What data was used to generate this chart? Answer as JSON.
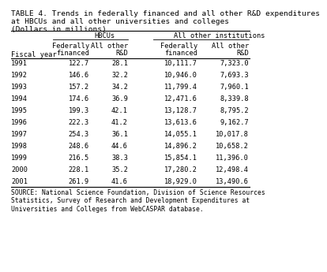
{
  "title_line1": "TABLE 4. Trends in federally financed and all other R&D expenditures",
  "title_line2": "at HBCUs and all other universities and colleges",
  "subtitle": "(Dollars in millions)",
  "col_group1": "HBCUs",
  "col_group2": "All other institutions",
  "col_sub1a": "Federally",
  "col_sub1b": "financed",
  "col_sub2a": "All other",
  "col_sub2b": "R&D",
  "col_sub3a": "Federally",
  "col_sub3b": "financed",
  "col_sub4a": "All other",
  "col_sub4b": "R&D",
  "row_header": "Fiscal year",
  "years": [
    "1991",
    "1992",
    "1993",
    "1994",
    "1995",
    "1996",
    "1997",
    "1998",
    "1999",
    "2000",
    "2001"
  ],
  "hbcu_fed": [
    "122.7",
    "146.6",
    "157.2",
    "174.6",
    "199.3",
    "222.3",
    "254.3",
    "248.6",
    "216.5",
    "228.1",
    "261.9"
  ],
  "hbcu_other": [
    "28.1",
    "32.2",
    "34.2",
    "36.9",
    "42.1",
    "41.2",
    "36.1",
    "44.6",
    "38.3",
    "35.2",
    "41.6"
  ],
  "other_fed": [
    "10,111.7",
    "10,946.0",
    "11,799.4",
    "12,471.6",
    "13,128.7",
    "13,613.6",
    "14,055.1",
    "14,896.2",
    "15,854.1",
    "17,280.2",
    "18,929.0"
  ],
  "other_other": [
    "7,323.0",
    "7,693.3",
    "7,960.1",
    "8,339.8",
    "8,795.2",
    "9,162.7",
    "10,017.8",
    "10,658.2",
    "11,396.0",
    "12,498.4",
    "13,490.6"
  ],
  "source_text": "SOURCE: National Science Foundation, Division of Science Resources\nStatistics, Survey of Research and Development Expenditures at\nUniversities and Colleges from WebCASPAR database.",
  "bg_color": "#ffffff",
  "text_color": "#000000"
}
